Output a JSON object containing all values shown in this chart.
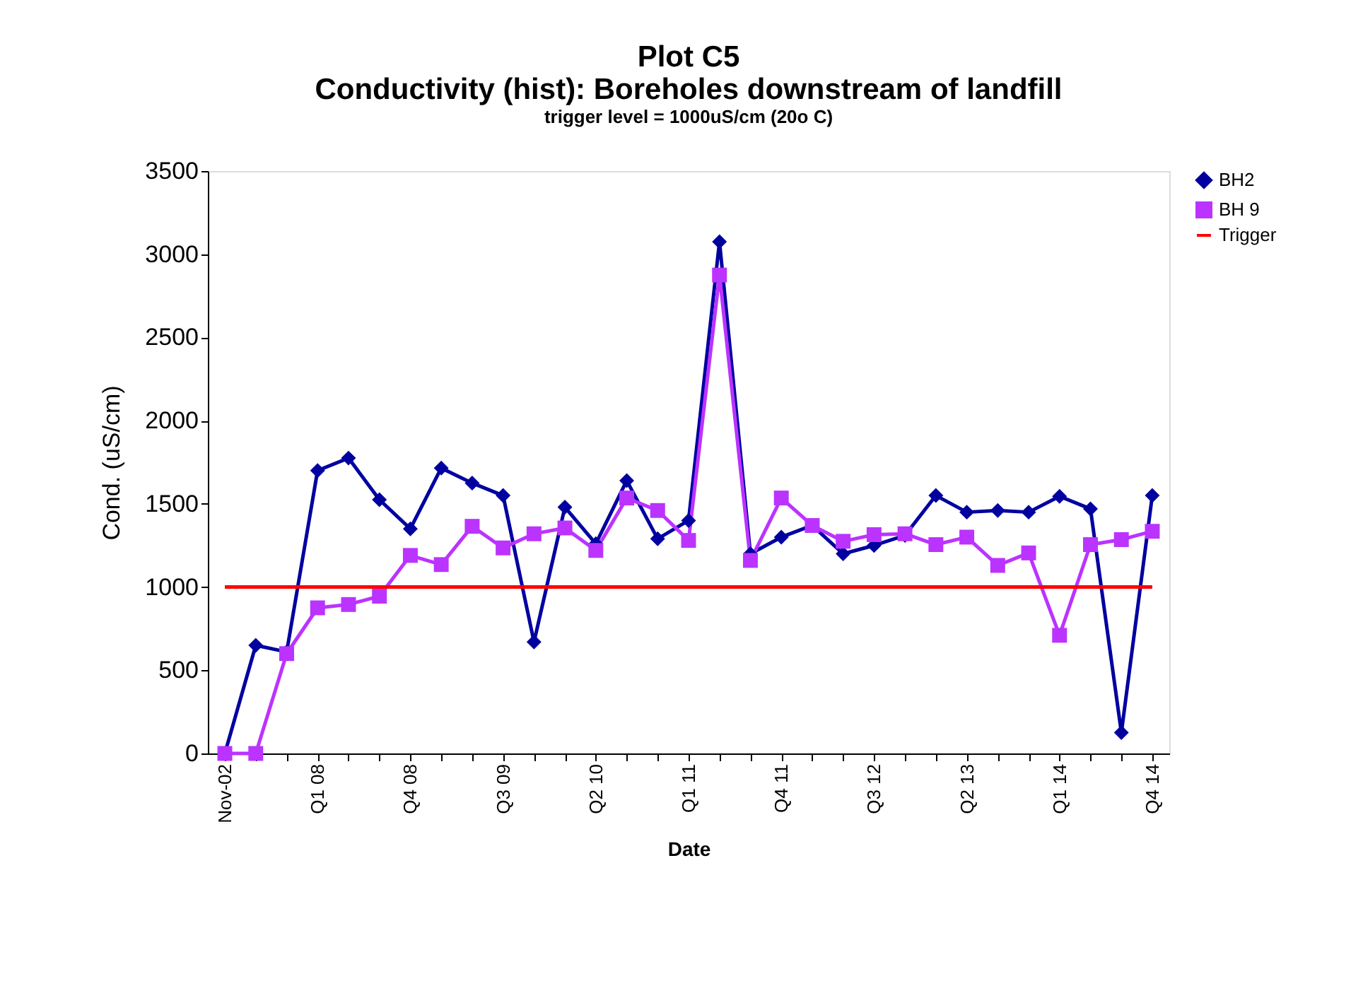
{
  "chart_data": {
    "type": "line",
    "title": "Plot C5",
    "subtitle": "Conductivity (hist): Boreholes downstream of landfill",
    "annotations": [
      "trigger level = 1000uS/cm (20o C)"
    ],
    "xlabel": "Date",
    "ylabel": "Cond. (uS/cm)",
    "categories": [
      "Nov-02",
      null,
      null,
      "Q1 08",
      null,
      null,
      "Q4 08",
      null,
      null,
      "Q3 09",
      null,
      null,
      "Q2 10",
      null,
      null,
      "Q1 11",
      null,
      null,
      "Q4 11",
      null,
      null,
      "Q3 12",
      null,
      null,
      "Q2 13",
      null,
      null,
      "Q1 14",
      null,
      null,
      "Q4 14"
    ],
    "series": [
      {
        "name": "BH2",
        "color": "#0000a0",
        "marker": "diamond",
        "values": [
          0,
          650,
          610,
          1700,
          1775,
          1525,
          1350,
          1715,
          1625,
          1550,
          670,
          1480,
          1260,
          1640,
          1290,
          1400,
          3075,
          1200,
          1300,
          1370,
          1200,
          1250,
          1310,
          1550,
          1450,
          1460,
          1450,
          1545,
          1470,
          125,
          1550
        ]
      },
      {
        "name": "BH 9",
        "color": "#bb33ff",
        "marker": "square",
        "values": [
          0,
          0,
          600,
          875,
          895,
          945,
          1190,
          1135,
          1365,
          1235,
          1320,
          1355,
          1220,
          1535,
          1460,
          1280,
          2875,
          1160,
          1535,
          1370,
          1275,
          1315,
          1320,
          1255,
          1300,
          1130,
          1205,
          710,
          1255,
          1285,
          1335
        ]
      },
      {
        "name": "Trigger",
        "color": "#ff0000",
        "marker": "none",
        "values": [
          1000,
          1000,
          1000,
          1000,
          1000,
          1000,
          1000,
          1000,
          1000,
          1000,
          1000,
          1000,
          1000,
          1000,
          1000,
          1000,
          1000,
          1000,
          1000,
          1000,
          1000,
          1000,
          1000,
          1000,
          1000,
          1000,
          1000,
          1000,
          1000,
          1000,
          1000
        ]
      }
    ],
    "ylim": [
      0,
      3500
    ],
    "yticks": [
      0,
      500,
      1000,
      1500,
      2000,
      2500,
      3000,
      3500
    ],
    "grid": false,
    "legend": "right",
    "line_style": "solid"
  }
}
